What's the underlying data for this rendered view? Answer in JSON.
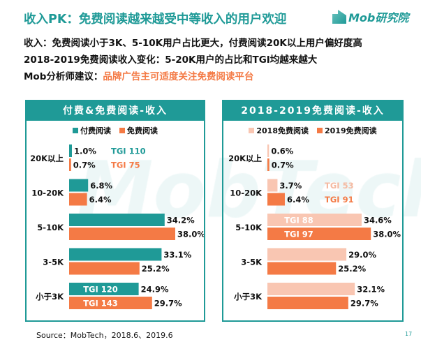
{
  "header": {
    "title": "收入PK：免费阅读越来越受中等收入的用户欢迎",
    "logo_text": "Mob研究院",
    "line1": "收入：免费阅读小于3K、5-10K用户占比更大，付费阅读20K以上用户偏好度高",
    "line2": "2018-2019免费阅读收入变化：5-20K用户的占比和TGI均越来越大",
    "line3_prefix": "Mob分析师建议：",
    "line3_accent": "品牌广告主可适度关注免费阅读平台"
  },
  "watermark": "MobTech",
  "colors": {
    "teal": "#1f9a97",
    "orange": "#f47a45",
    "pink": "#f9c6b2"
  },
  "chart_data": [
    {
      "type": "bar",
      "orientation": "horizontal",
      "title": "付费&免费阅读-收入",
      "categories": [
        "20K以上",
        "10-20K",
        "5-10K",
        "3-5K",
        "小于3K"
      ],
      "series": [
        {
          "name": "付费阅读",
          "color": "#1f9a97",
          "values": [
            1.0,
            6.8,
            34.2,
            33.1,
            24.9
          ],
          "labels": [
            "1.0%",
            "6.8%",
            "34.2%",
            "33.1%",
            "24.9%"
          ],
          "tgi": {
            "20K以上": "TGI 110",
            "小于3K": "TGI 120"
          }
        },
        {
          "name": "免费阅读",
          "color": "#f47a45",
          "values": [
            0.7,
            6.4,
            38.0,
            25.2,
            29.7
          ],
          "labels": [
            "0.7%",
            "6.4%",
            "38.0%",
            "25.2%",
            "29.7%"
          ],
          "tgi": {
            "20K以上": "TGI 75",
            "小于3K": "TGI 143"
          }
        }
      ]
    },
    {
      "type": "bar",
      "orientation": "horizontal",
      "title": "2018-2019免费阅读-收入",
      "categories": [
        "20K以上",
        "10-20K",
        "5-10K",
        "3-5K",
        "小于3K"
      ],
      "series": [
        {
          "name": "2018免费阅读",
          "color": "#f9c6b2",
          "values": [
            0.6,
            3.7,
            34.6,
            29.0,
            32.1
          ],
          "labels": [
            "0.6%",
            "3.7%",
            "34.6%",
            "29.0%",
            "32.1%"
          ],
          "tgi": {
            "10-20K": "TGI 53",
            "5-10K": "TGI 88"
          }
        },
        {
          "name": "2019免费阅读",
          "color": "#f47a45",
          "values": [
            0.7,
            6.4,
            38.0,
            25.2,
            29.7
          ],
          "labels": [
            "0.7%",
            "6.4%",
            "38.0%",
            "25.2%",
            "29.7%"
          ],
          "tgi": {
            "10-20K": "TGI 91",
            "5-10K": "TGI 97"
          }
        }
      ]
    }
  ],
  "footer": {
    "source": "Source：MobTech，2018.6、2019.6",
    "page": "17"
  }
}
